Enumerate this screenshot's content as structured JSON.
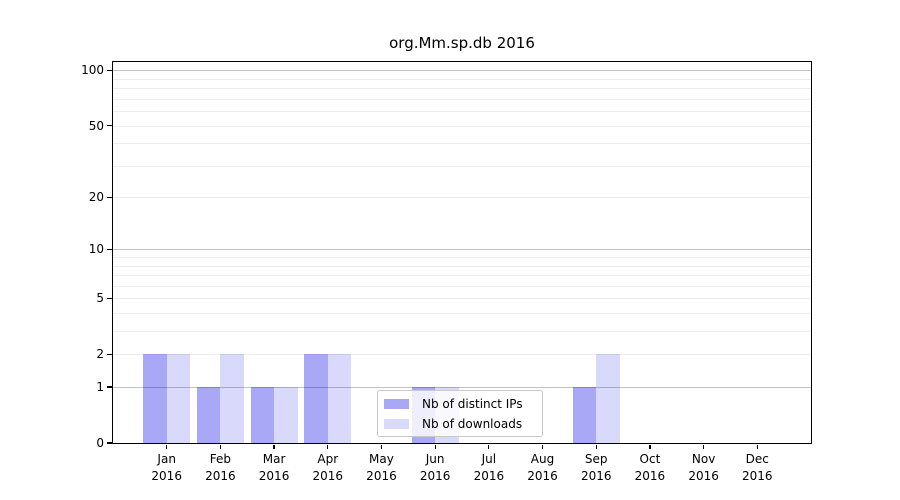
{
  "chart_data": {
    "type": "bar",
    "title": "org.Mm.sp.db 2016",
    "categories": [
      "Jan",
      "Feb",
      "Mar",
      "Apr",
      "May",
      "Jun",
      "Jul",
      "Aug",
      "Sep",
      "Oct",
      "Nov",
      "Dec"
    ],
    "year_label": "2016",
    "series": [
      {
        "name": "Nb of distinct IPs",
        "color": "rgba(0,0,230,0.34)",
        "values": [
          2,
          1,
          1,
          2,
          0,
          1,
          0,
          0,
          1,
          0,
          0,
          0
        ]
      },
      {
        "name": "Nb of downloads",
        "color": "rgba(0,0,230,0.15)",
        "values": [
          2,
          2,
          1,
          2,
          0,
          1,
          0,
          0,
          2,
          0,
          0,
          0
        ]
      }
    ],
    "yscale": "log1p",
    "ylim": [
      0,
      111
    ],
    "y_major_ticks": [
      0,
      1,
      2,
      5,
      10,
      20,
      50,
      100
    ],
    "grid": {
      "on": true,
      "major_values": [
        1,
        10,
        100
      ],
      "minor_values": [
        2,
        3,
        4,
        5,
        6,
        7,
        8,
        9,
        20,
        30,
        40,
        50,
        60,
        70,
        80,
        90
      ],
      "major_color": "#c3c3c3",
      "minor_color": "#ededed"
    },
    "legend": {
      "position": "lower center"
    }
  }
}
